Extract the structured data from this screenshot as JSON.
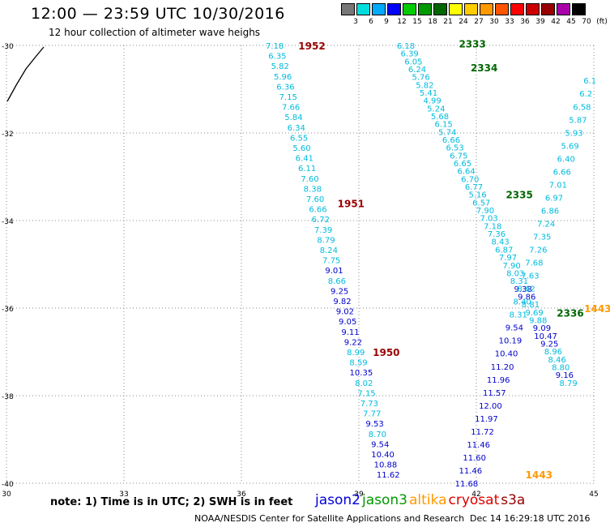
{
  "header": {
    "title": "12:00 — 23:59 UTC 10/30/2016",
    "subtitle": "12 hour collection of altimeter wave heighs"
  },
  "color_legend": {
    "labels": [
      "3",
      "6",
      "9",
      "12",
      "15",
      "18",
      "21",
      "24",
      "27",
      "30",
      "33",
      "36",
      "39",
      "42",
      "45",
      "70",
      "(ft)"
    ],
    "colors": [
      "#777777",
      "#00dddd",
      "#00aaff",
      "#0000ff",
      "#00cc00",
      "#009900",
      "#006600",
      "#ffff00",
      "#ffcc00",
      "#ff9900",
      "#ff5500",
      "#ff0000",
      "#cc0000",
      "#990000",
      "#aa00aa",
      "#000000"
    ]
  },
  "footer": {
    "note": "note: 1) Time is in UTC; 2) SWH is in feet",
    "credit": "NOAA/NESDIS Center for Satellite Applications and Research",
    "timestamp": "Dec 14 16:29:18 UTC 2016",
    "satellites": [
      {
        "name": "jason2",
        "color": "#0000dd"
      },
      {
        "name": "jason3",
        "color": "#009900"
      },
      {
        "name": "altika",
        "color": "#ff9900"
      },
      {
        "name": "cryosat",
        "color": "#dd0000"
      },
      {
        "name": "s3a",
        "color": "#990000"
      }
    ]
  },
  "chart_data": {
    "type": "scatter",
    "xlim": [
      30,
      45
    ],
    "ylim": [
      -40,
      -30
    ],
    "xticks": [
      30,
      33,
      36,
      39,
      42,
      45
    ],
    "yticks": [
      -30,
      -32,
      -34,
      -36,
      -38,
      -40
    ],
    "grid": true,
    "value_colors": {
      "cyan": "#00bbdd",
      "blue": "#0000cc"
    },
    "pass_labels": [
      {
        "text": "1952",
        "x": 37.8,
        "y": -30.0,
        "color": "#990000"
      },
      {
        "text": "1951",
        "x": 38.8,
        "y": -33.6,
        "color": "#990000"
      },
      {
        "text": "1950",
        "x": 39.7,
        "y": -37.0,
        "color": "#990000"
      },
      {
        "text": "2333",
        "x": 41.9,
        "y": -29.95,
        "color": "#006600"
      },
      {
        "text": "2334",
        "x": 42.2,
        "y": -30.5,
        "color": "#006600"
      },
      {
        "text": "2335",
        "x": 43.1,
        "y": -33.4,
        "color": "#006600"
      },
      {
        "text": "2336",
        "x": 44.4,
        "y": -36.1,
        "color": "#006600"
      },
      {
        "text": "1443",
        "x": 45.1,
        "y": -36.0,
        "color": "#ff9900"
      },
      {
        "text": "1443",
        "x": 43.6,
        "y": -39.8,
        "color": "#ff9900"
      }
    ],
    "series": [
      {
        "name": "1952",
        "x_start": 36.85,
        "y_start": -30.0,
        "x_end": 39.75,
        "y_end": -39.8,
        "values": [
          "7.18",
          "6.35",
          "5.82",
          "5.96",
          "6.36",
          "7.15",
          "7.66",
          "5.84",
          "6.34",
          "6.55",
          "5.60",
          "6.41",
          "6.11",
          "7.60",
          "8.38",
          "7.60",
          "6.66",
          "6.72",
          "7.39",
          "8.79",
          "8.24",
          "7.75",
          "9.01",
          "8.66",
          "9.25",
          "9.82",
          "9.02",
          "9.05",
          "9.11",
          "9.22",
          "8.99",
          "8.59",
          "10.35",
          "8.02",
          "7.15",
          "7.73",
          "7.77",
          "9.53",
          "8.70",
          "9.54",
          "10.40",
          "10.88",
          "11.62"
        ],
        "colors": [
          "c",
          "c",
          "c",
          "c",
          "c",
          "c",
          "c",
          "c",
          "c",
          "c",
          "c",
          "c",
          "c",
          "c",
          "c",
          "c",
          "c",
          "c",
          "c",
          "c",
          "c",
          "c",
          "b",
          "c",
          "b",
          "b",
          "b",
          "b",
          "b",
          "b",
          "c",
          "c",
          "b",
          "c",
          "c",
          "c",
          "c",
          "b",
          "c",
          "b",
          "b",
          "b",
          "b"
        ]
      },
      {
        "name": "2333",
        "x_start": 40.2,
        "y_start": -30.0,
        "x_end": 44.35,
        "y_end": -37.7,
        "values": [
          "6.18",
          "6.39",
          "6.05",
          "6.24",
          "5.76",
          "5.82",
          "5.41",
          "4.99",
          "5.24",
          "5.68",
          "6.15",
          "5.74",
          "6.66",
          "6.53",
          "6.75",
          "6.65",
          "6.64",
          "6.70",
          "6.77",
          "5.16",
          "6.57",
          "7.90",
          "7.03",
          "7.18",
          "7.36",
          "8.43",
          "6.87",
          "7.97",
          "7.90",
          "8.03",
          "8.31",
          "9.38",
          "9.86",
          "8.81",
          "9.69",
          "9.88",
          "9.09",
          "10.47",
          "9.25",
          "8.96",
          "8.46",
          "8.80",
          "9.16",
          "8.79"
        ],
        "colors": [
          "c",
          "c",
          "c",
          "c",
          "c",
          "c",
          "c",
          "c",
          "c",
          "c",
          "c",
          "c",
          "c",
          "c",
          "c",
          "c",
          "c",
          "c",
          "c",
          "c",
          "c",
          "c",
          "c",
          "c",
          "c",
          "c",
          "c",
          "c",
          "c",
          "c",
          "c",
          "b",
          "b",
          "c",
          "c",
          "c",
          "b",
          "b",
          "b",
          "c",
          "c",
          "c",
          "b",
          "c"
        ]
      },
      {
        "name": "1443",
        "x_start": 44.9,
        "y_start": -30.8,
        "x_end": 41.75,
        "y_end": -40.0,
        "values": [
          "6.1",
          "6.2",
          "6.58",
          "5.87",
          "5.93",
          "5.69",
          "6.40",
          "6.66",
          "7.01",
          "6.97",
          "6.86",
          "7.24",
          "7.35",
          "7.26",
          "7.68",
          "7.63",
          "8.62",
          "8.40",
          "8.31",
          "9.54",
          "10.19",
          "10.40",
          "11.20",
          "11.96",
          "11.57",
          "12.00",
          "11.97",
          "11.72",
          "11.46",
          "11.60",
          "11.46",
          "11.68"
        ],
        "colors": [
          "c",
          "c",
          "c",
          "c",
          "c",
          "c",
          "c",
          "c",
          "c",
          "c",
          "c",
          "c",
          "c",
          "c",
          "c",
          "c",
          "c",
          "c",
          "c",
          "b",
          "b",
          "b",
          "b",
          "b",
          "b",
          "b",
          "b",
          "b",
          "b",
          "b",
          "b",
          "b"
        ]
      }
    ]
  }
}
